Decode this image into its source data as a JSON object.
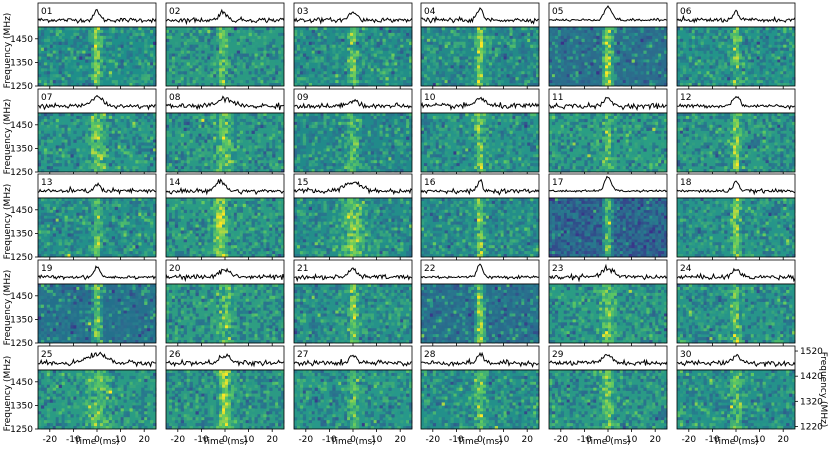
{
  "chart_data": {
    "type": "heatmap",
    "description_style": "dynamic-spectrum grid with pulse profiles",
    "layout": {
      "rows": 5,
      "cols": 6
    },
    "panels": [
      {
        "label": "01",
        "dm_shift": 0.0,
        "peak": 0.55,
        "width": 1.1,
        "noise": 0.1,
        "bg": "#1f8f8a",
        "band": 0.35
      },
      {
        "label": "02",
        "dm_shift": -1.0,
        "peak": 0.5,
        "width": 1.4,
        "noise": 0.11,
        "bg": "#2a9a82",
        "band": 0.3
      },
      {
        "label": "03",
        "dm_shift": 0.0,
        "peak": 0.45,
        "width": 1.6,
        "noise": 0.1,
        "bg": "#228e88",
        "band": 0.3
      },
      {
        "label": "04",
        "dm_shift": 0.0,
        "peak": 0.6,
        "width": 1.2,
        "noise": 0.1,
        "bg": "#238a88",
        "band": 0.4
      },
      {
        "label": "05",
        "dm_shift": 0.0,
        "peak": 0.75,
        "width": 1.6,
        "noise": 0.06,
        "bg": "#2c6c8c",
        "band": 0.45
      },
      {
        "label": "06",
        "dm_shift": 0.0,
        "peak": 0.45,
        "width": 1.0,
        "noise": 0.1,
        "bg": "#23948a",
        "band": 0.3
      },
      {
        "label": "07",
        "dm_shift": 0.0,
        "peak": 0.5,
        "width": 2.5,
        "noise": 0.1,
        "bg": "#27988a",
        "band": 0.3
      },
      {
        "label": "08",
        "dm_shift": 0.0,
        "peak": 0.4,
        "width": 3.0,
        "noise": 0.12,
        "bg": "#2a9a85",
        "band": 0.25
      },
      {
        "label": "09",
        "dm_shift": 0.0,
        "peak": 0.35,
        "width": 2.0,
        "noise": 0.12,
        "bg": "#218a8a",
        "band": 0.25
      },
      {
        "label": "10",
        "dm_shift": 0.0,
        "peak": 0.45,
        "width": 2.0,
        "noise": 0.12,
        "bg": "#26958a",
        "band": 0.3
      },
      {
        "label": "11",
        "dm_shift": 0.0,
        "peak": 0.45,
        "width": 1.5,
        "noise": 0.11,
        "bg": "#2a9e84",
        "band": 0.3
      },
      {
        "label": "12",
        "dm_shift": 0.0,
        "peak": 0.55,
        "width": 1.5,
        "noise": 0.08,
        "bg": "#2a9a86",
        "band": 0.35
      },
      {
        "label": "13",
        "dm_shift": 0.0,
        "peak": 0.4,
        "width": 1.2,
        "noise": 0.11,
        "bg": "#23908a",
        "band": 0.3
      },
      {
        "label": "14",
        "dm_shift": -2.0,
        "peak": 0.55,
        "width": 2.0,
        "noise": 0.1,
        "bg": "#2a9c84",
        "band": 0.45
      },
      {
        "label": "15",
        "dm_shift": 0.0,
        "peak": 0.5,
        "width": 3.5,
        "noise": 0.11,
        "bg": "#238e8a",
        "band": 0.3
      },
      {
        "label": "16",
        "dm_shift": 0.0,
        "peak": 0.6,
        "width": 1.0,
        "noise": 0.1,
        "bg": "#248e8a",
        "band": 0.35
      },
      {
        "label": "17",
        "dm_shift": 0.0,
        "peak": 0.8,
        "width": 1.4,
        "noise": 0.05,
        "bg": "#2f4f8a",
        "band": 0.45
      },
      {
        "label": "18",
        "dm_shift": 0.0,
        "peak": 0.55,
        "width": 1.2,
        "noise": 0.08,
        "bg": "#26958a",
        "band": 0.4
      },
      {
        "label": "19",
        "dm_shift": 0.0,
        "peak": 0.6,
        "width": 1.2,
        "noise": 0.08,
        "bg": "#24708c",
        "band": 0.4
      },
      {
        "label": "20",
        "dm_shift": 0.0,
        "peak": 0.4,
        "width": 2.5,
        "noise": 0.12,
        "bg": "#2e9e82",
        "band": 0.25
      },
      {
        "label": "21",
        "dm_shift": 0.0,
        "peak": 0.5,
        "width": 1.5,
        "noise": 0.11,
        "bg": "#26928a",
        "band": 0.3
      },
      {
        "label": "22",
        "dm_shift": 0.0,
        "peak": 0.7,
        "width": 1.2,
        "noise": 0.07,
        "bg": "#286c8c",
        "band": 0.45
      },
      {
        "label": "23",
        "dm_shift": 0.0,
        "peak": 0.45,
        "width": 2.5,
        "noise": 0.11,
        "bg": "#2a9c84",
        "band": 0.3
      },
      {
        "label": "24",
        "dm_shift": 0.0,
        "peak": 0.45,
        "width": 1.5,
        "noise": 0.11,
        "bg": "#27958a",
        "band": 0.3
      },
      {
        "label": "25",
        "dm_shift": 0.0,
        "peak": 0.5,
        "width": 4.0,
        "noise": 0.12,
        "bg": "#2a9c84",
        "band": 0.25
      },
      {
        "label": "26",
        "dm_shift": 0.0,
        "peak": 0.45,
        "width": 2.0,
        "noise": 0.11,
        "bg": "#2b9a84",
        "band": 0.4
      },
      {
        "label": "27",
        "dm_shift": 0.0,
        "peak": 0.4,
        "width": 1.5,
        "noise": 0.12,
        "bg": "#27988a",
        "band": 0.25
      },
      {
        "label": "28",
        "dm_shift": 0.0,
        "peak": 0.45,
        "width": 1.5,
        "noise": 0.12,
        "bg": "#23908a",
        "band": 0.3
      },
      {
        "label": "29",
        "dm_shift": 0.0,
        "peak": 0.45,
        "width": 2.0,
        "noise": 0.11,
        "bg": "#2a9a86",
        "band": 0.3
      },
      {
        "label": "30",
        "dm_shift": 0.0,
        "peak": 0.4,
        "width": 2.0,
        "noise": 0.12,
        "bg": "#24928a",
        "band": 0.25
      }
    ],
    "xlabel": "Time (ms)",
    "ylabel": "Frequency (MHz)",
    "ylabel_right": "Frequency (MHz)",
    "x_ticks": [
      -20,
      -10,
      0,
      10,
      20
    ],
    "x_range": [
      -25,
      25
    ],
    "y_ticks_left": [
      1250,
      1350,
      1450
    ],
    "y_range_left": [
      1250,
      1500
    ],
    "y_ticks_right": [
      1220,
      1320,
      1420,
      1520
    ],
    "colormap_colors": [
      "#3b2f8a",
      "#2c6d8e",
      "#21918c",
      "#5cc862",
      "#fde725"
    ]
  }
}
